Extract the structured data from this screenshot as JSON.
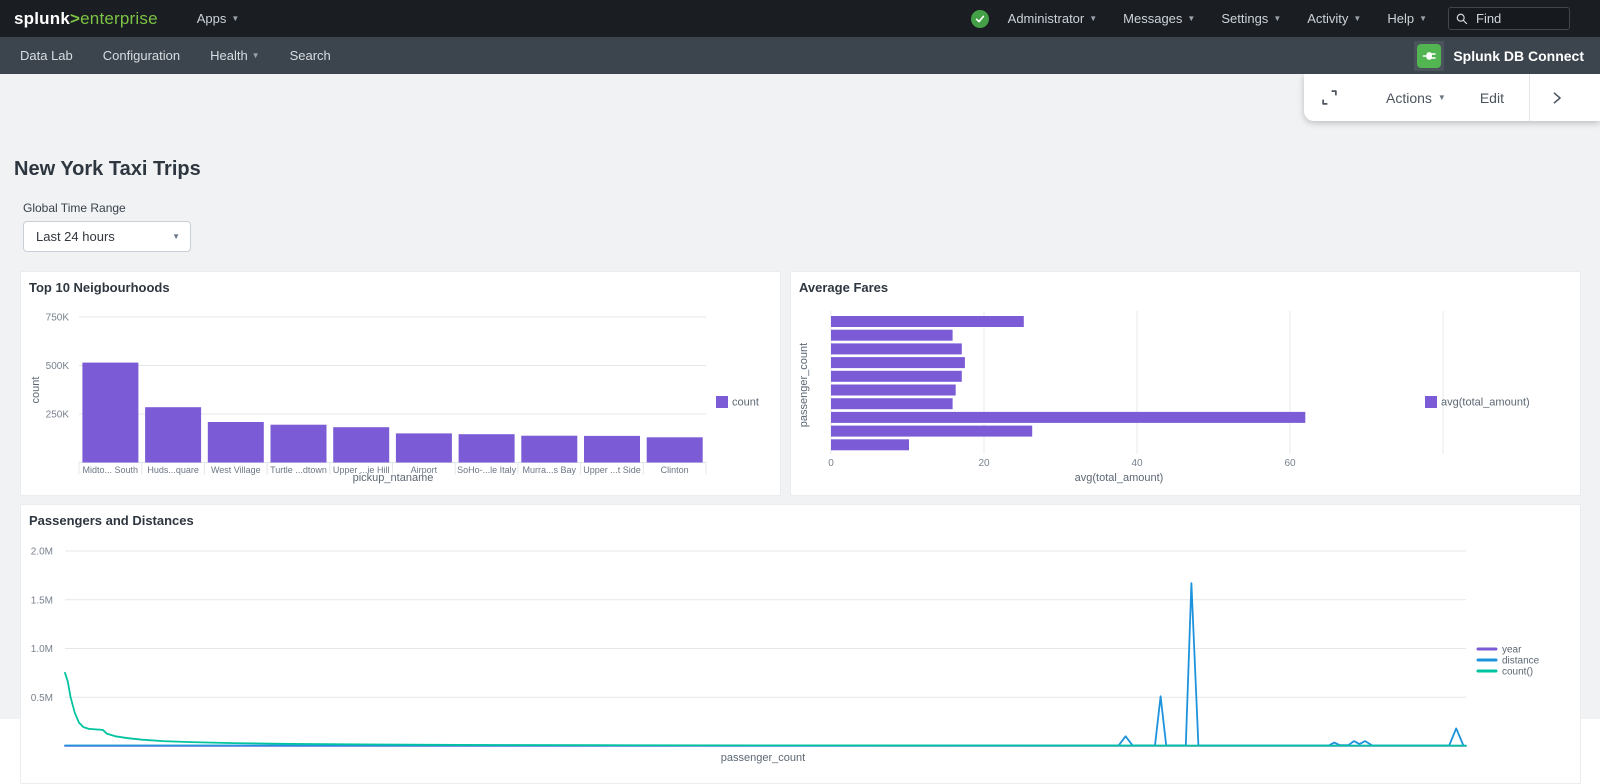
{
  "topnav": {
    "logo_primary": "splunk",
    "logo_gt": ">",
    "logo_secondary": "enterprise",
    "apps_label": "Apps",
    "menus": [
      "Administrator",
      "Messages",
      "Settings",
      "Activity",
      "Help"
    ],
    "find_placeholder": "Find"
  },
  "appbar": {
    "items": [
      "Data Lab",
      "Configuration",
      "Health",
      "Search"
    ],
    "app_name": "Splunk DB Connect"
  },
  "toolbar": {
    "actions_label": "Actions",
    "edit_label": "Edit"
  },
  "page": {
    "title": "New York Taxi Trips",
    "time_range_label": "Global Time Range",
    "time_range_value": "Last 24 hours"
  },
  "colors": {
    "accent_purple": "#7b5cd6",
    "line_blue": "#1e93dd",
    "line_teal": "#00c3a0",
    "splunk_green": "#7cc244",
    "db_connect_green": "#53b552",
    "status_green": "#43a047"
  },
  "chart_data": [
    {
      "type": "bar",
      "title": "Top 10 Neigbourhoods",
      "categories": [
        "Midto... South",
        "Huds...quare",
        "West Village",
        "Turtle ...dtown",
        "Upper ...ie Hill",
        "Airport",
        "SoHo-...le Italy",
        "Murra...s Bay",
        "Upper ...t Side",
        "Clinton"
      ],
      "values": [
        515000,
        285000,
        209000,
        195000,
        182000,
        150000,
        146000,
        138000,
        137000,
        130000
      ],
      "xlabel": "pickup_ntaname",
      "ylabel": "count",
      "legend": [
        "count"
      ],
      "legend_position": "right",
      "yticks": [
        "250K",
        "500K",
        "750K"
      ],
      "ytick_values": [
        250000,
        500000,
        750000
      ],
      "ylim": [
        0,
        750000
      ],
      "grid": "horizontal",
      "bar_color": "#7b5cd6"
    },
    {
      "type": "hbar",
      "title": "Average Fares",
      "values": [
        25.2,
        15.9,
        17.1,
        17.5,
        17.1,
        16.3,
        15.9,
        62,
        26.3,
        10.2
      ],
      "xlabel": "avg(total_amount)",
      "ylabel": "passenger_count",
      "legend": [
        "avg(total_amount)"
      ],
      "legend_position": "right",
      "xticks": [
        "0",
        "20",
        "40",
        "60"
      ],
      "xtick_values": [
        0,
        20,
        40,
        60
      ],
      "grid_xtick_values": [
        0,
        20,
        40,
        60,
        80
      ],
      "xlim": [
        0,
        80
      ],
      "grid": "vertical",
      "bar_color": "#7b5cd6"
    },
    {
      "type": "line",
      "title": "Passengers and Distances",
      "xlabel": "passenger_count",
      "yticks": [
        "0.5M",
        "1.0M",
        "1.5M",
        "2.0M"
      ],
      "ytick_values": [
        0.5,
        1.0,
        1.5,
        2.0
      ],
      "ylim": [
        0,
        2.15
      ],
      "grid": "horizontal",
      "legend_position": "right",
      "series": [
        {
          "name": "year",
          "color": "#7b5cd6",
          "points": [
            [
              0,
              0.002
            ],
            [
              1,
              0.002
            ]
          ]
        },
        {
          "name": "distance",
          "color": "#1e93dd",
          "points": [
            [
              0,
              0.005
            ],
            [
              0.7,
              0.005
            ],
            [
              0.752,
              0.006
            ],
            [
              0.757,
              0.1
            ],
            [
              0.762,
              0.006
            ],
            [
              0.778,
              0.006
            ],
            [
              0.782,
              0.51
            ],
            [
              0.786,
              0.006
            ],
            [
              0.8,
              0.006
            ],
            [
              0.804,
              1.67
            ],
            [
              0.809,
              0.006
            ],
            [
              0.88,
              0.005
            ],
            [
              0.902,
              0.005
            ],
            [
              0.906,
              0.035
            ],
            [
              0.91,
              0.008
            ],
            [
              0.916,
              0.008
            ],
            [
              0.92,
              0.05
            ],
            [
              0.924,
              0.02
            ],
            [
              0.928,
              0.05
            ],
            [
              0.933,
              0.006
            ],
            [
              0.96,
              0.005
            ],
            [
              0.988,
              0.005
            ],
            [
              0.993,
              0.18
            ],
            [
              0.998,
              0.01
            ]
          ]
        },
        {
          "name": "count()",
          "color": "#00c3a0",
          "points": [
            [
              0,
              0.75
            ],
            [
              0.002,
              0.66
            ],
            [
              0.004,
              0.5
            ],
            [
              0.007,
              0.34
            ],
            [
              0.01,
              0.24
            ],
            [
              0.013,
              0.195
            ],
            [
              0.017,
              0.175
            ],
            [
              0.022,
              0.17
            ],
            [
              0.027,
              0.165
            ],
            [
              0.03,
              0.125
            ],
            [
              0.036,
              0.1
            ],
            [
              0.045,
              0.08
            ],
            [
              0.055,
              0.065
            ],
            [
              0.07,
              0.05
            ],
            [
              0.09,
              0.04
            ],
            [
              0.12,
              0.03
            ],
            [
              0.16,
              0.022
            ],
            [
              0.21,
              0.016
            ],
            [
              0.28,
              0.011
            ],
            [
              0.38,
              0.008
            ],
            [
              0.5,
              0.006
            ],
            [
              0.65,
              0.005
            ],
            [
              0.8,
              0.004
            ],
            [
              1,
              0.004
            ]
          ]
        }
      ]
    }
  ]
}
